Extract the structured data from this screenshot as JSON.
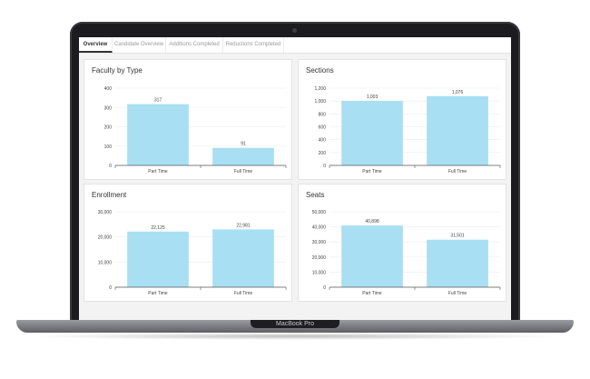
{
  "device": {
    "brand_label": "MacBook Pro"
  },
  "tabs": [
    {
      "label": "Overview",
      "active": true
    },
    {
      "label": "Candidate Overview",
      "active": false
    },
    {
      "label": "Additions Completed",
      "active": false
    },
    {
      "label": "Reductions Completed",
      "active": false
    }
  ],
  "colors": {
    "bar": "#a8dff2",
    "grid": "#ececec",
    "axis": "#555555",
    "text": "#444444"
  },
  "chart_data": [
    {
      "type": "bar",
      "title": "Faculty by Type",
      "categories": [
        "Part Time",
        "Full Time"
      ],
      "values": [
        317,
        91
      ],
      "value_labels": [
        "317",
        "91"
      ],
      "yticks": [
        0,
        100,
        200,
        300,
        400
      ],
      "ytick_labels": [
        "0",
        "100",
        "200",
        "300",
        "400"
      ],
      "ylim": [
        0,
        400
      ],
      "grid": true
    },
    {
      "type": "bar",
      "title": "Sections",
      "categories": [
        "Part Time",
        "Full Time"
      ],
      "values": [
        1003,
        1076
      ],
      "value_labels": [
        "1,003",
        "1,076"
      ],
      "yticks": [
        0,
        200,
        400,
        600,
        800,
        1000,
        1200
      ],
      "ytick_labels": [
        "0",
        "200",
        "400",
        "600",
        "800",
        "1,000",
        "1,200"
      ],
      "ylim": [
        0,
        1200
      ],
      "grid": true
    },
    {
      "type": "bar",
      "title": "Enrollment",
      "categories": [
        "Part Time",
        "Full Time"
      ],
      "values": [
        22125,
        22981
      ],
      "value_labels": [
        "22,125",
        "22,981"
      ],
      "yticks": [
        0,
        10000,
        20000,
        30000
      ],
      "ytick_labels": [
        "0",
        "10,000",
        "20,000",
        "30,000"
      ],
      "ylim": [
        0,
        30000
      ],
      "grid": true
    },
    {
      "type": "bar",
      "title": "Seats",
      "categories": [
        "Part Time",
        "Full Time"
      ],
      "values": [
        40898,
        31501
      ],
      "value_labels": [
        "40,898",
        "31,501"
      ],
      "yticks": [
        0,
        10000,
        20000,
        30000,
        40000,
        50000
      ],
      "ytick_labels": [
        "0",
        "10,000",
        "20,000",
        "30,000",
        "40,000",
        "50,000"
      ],
      "ylim": [
        0,
        50000
      ],
      "grid": true
    }
  ]
}
